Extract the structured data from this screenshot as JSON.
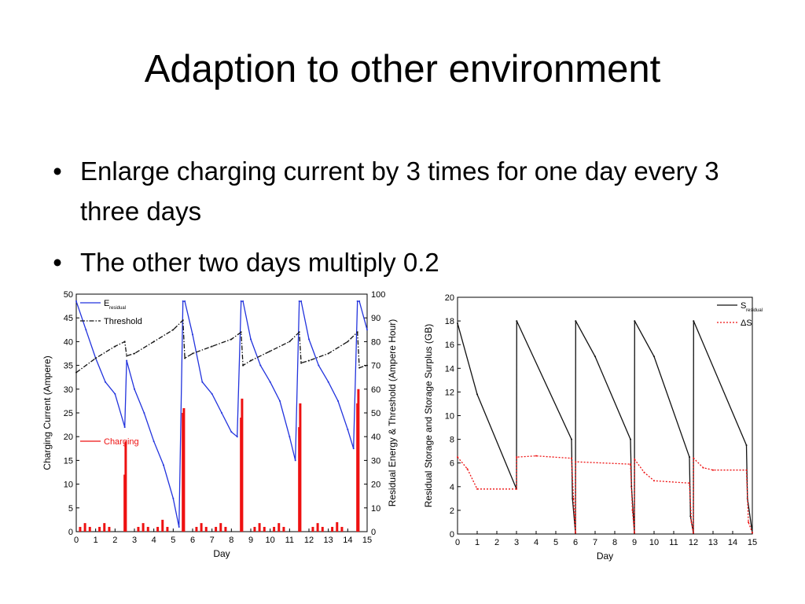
{
  "slide": {
    "title": "Adaption to other environment",
    "bullets": [
      "Enlarge charging current by 3 times for one day every 3 three days",
      "The other two days multiply 0.2"
    ]
  },
  "chart_data": [
    {
      "type": "line",
      "xlabel": "Day",
      "ylabel": "Charging Current (Ampere)",
      "y2label": "Residual Energy & Threshold (Ampere Hour)",
      "xlim": [
        0,
        15
      ],
      "ylim": [
        0,
        50
      ],
      "y2lim": [
        0,
        100
      ],
      "xticks": [
        0,
        1,
        2,
        3,
        4,
        5,
        6,
        7,
        8,
        9,
        10,
        11,
        12,
        13,
        14,
        15
      ],
      "yticks": [
        0,
        5,
        10,
        15,
        20,
        25,
        30,
        35,
        40,
        45,
        50
      ],
      "y2ticks": [
        0,
        10,
        20,
        30,
        40,
        50,
        60,
        70,
        80,
        90,
        100
      ],
      "legend_position": "top-left",
      "series": [
        {
          "name": "E",
          "name_sub": "residual",
          "axis": "right",
          "color": "#2233dd",
          "style": "solid",
          "x": [
            0,
            0.5,
            1,
            1.5,
            2,
            2.5,
            2.6,
            3,
            3.5,
            4,
            4.5,
            5,
            5.3,
            5.5,
            5.6,
            6,
            6.5,
            7,
            7.5,
            8,
            8.3,
            8.5,
            8.6,
            9,
            9.5,
            10,
            10.5,
            11,
            11.3,
            11.5,
            11.6,
            12,
            12.5,
            13,
            13.5,
            14,
            14.3,
            14.5,
            14.6,
            15
          ],
          "y": [
            97,
            85,
            73,
            63,
            58,
            44,
            72,
            60,
            50,
            38,
            28,
            14,
            2,
            97,
            97,
            83,
            63,
            58,
            50,
            42,
            40,
            97,
            97,
            81,
            70,
            63,
            55,
            40,
            30,
            97,
            97,
            81,
            70,
            63,
            55,
            43,
            35,
            97,
            97,
            85
          ]
        },
        {
          "name": "Threshold",
          "axis": "right",
          "color": "#111111",
          "style": "dash-dot",
          "x": [
            0,
            1,
            2,
            2.5,
            2.6,
            3,
            4,
            5,
            5.5,
            5.6,
            6,
            7,
            8,
            8.5,
            8.6,
            9,
            10,
            11,
            11.5,
            11.6,
            12,
            13,
            14,
            14.5,
            14.6,
            15
          ],
          "y": [
            67,
            73,
            78,
            80,
            74,
            75,
            80,
            85,
            89,
            73,
            75,
            78,
            81,
            84,
            70,
            72,
            76,
            80,
            84,
            71,
            72,
            75,
            80,
            84,
            69,
            70
          ]
        },
        {
          "name": "Charging",
          "axis": "left",
          "color": "#ee1111",
          "style": "spikes",
          "x": [
            0.2,
            0.45,
            0.7,
            1.2,
            1.45,
            1.7,
            2.5,
            2.55,
            3.2,
            3.45,
            3.7,
            4.2,
            4.45,
            4.7,
            5.5,
            5.55,
            6.2,
            6.45,
            6.7,
            7.2,
            7.45,
            7.7,
            8.5,
            8.55,
            9.2,
            9.45,
            9.7,
            10.2,
            10.45,
            10.7,
            11.5,
            11.55,
            12.2,
            12.45,
            12.7,
            13.2,
            13.45,
            13.7,
            14.5,
            14.55
          ],
          "y": [
            1,
            1.8,
            1,
            1,
            1.8,
            1,
            12,
            19,
            1,
            1.8,
            1,
            1,
            2.5,
            1,
            25,
            26,
            1,
            1.8,
            1,
            1,
            1.8,
            1,
            24,
            28,
            1,
            1.8,
            1,
            1,
            1.8,
            1,
            22,
            27,
            1,
            1.8,
            1,
            1,
            2,
            1,
            27,
            30
          ]
        }
      ]
    },
    {
      "type": "line",
      "xlabel": "Day",
      "ylabel": "Residual Storage and Storage Surplus (GB)",
      "xlim": [
        0,
        15
      ],
      "ylim": [
        0,
        20
      ],
      "xticks": [
        0,
        1,
        2,
        3,
        4,
        5,
        6,
        7,
        8,
        9,
        10,
        11,
        12,
        13,
        14,
        15
      ],
      "yticks": [
        0,
        2,
        4,
        6,
        8,
        10,
        12,
        14,
        16,
        18,
        20
      ],
      "legend_position": "top-right",
      "series": [
        {
          "name": "S",
          "name_sub": "residual",
          "color": "#111111",
          "style": "solid",
          "x": [
            0,
            1,
            3,
            3.01,
            5.8,
            5.85,
            6,
            6.01,
            7,
            8.8,
            8.85,
            9,
            9.01,
            10,
            11.8,
            11.85,
            12,
            12.01,
            14.7,
            14.75,
            15
          ],
          "y": [
            17.8,
            11.8,
            3.8,
            18,
            8,
            3,
            0.1,
            18,
            15,
            8,
            4,
            0.1,
            18,
            15,
            6.5,
            1.5,
            0.1,
            18,
            7.5,
            3,
            0.1
          ]
        },
        {
          "name": "ΔS",
          "color": "#ee1111",
          "style": "dotted",
          "x": [
            0,
            0.5,
            1,
            3,
            3.01,
            4,
            5.8,
            5.9,
            6,
            6.01,
            8.8,
            8.9,
            9,
            9.01,
            9.5,
            10,
            11.8,
            11.9,
            12,
            12.01,
            12.5,
            13,
            14.7,
            14.8,
            15
          ],
          "y": [
            6.5,
            5.5,
            3.8,
            3.8,
            6.5,
            6.6,
            6.4,
            3,
            0.1,
            6.1,
            5.9,
            2,
            0.1,
            6.3,
            5.2,
            4.5,
            4.3,
            1,
            0.1,
            6.4,
            5.6,
            5.4,
            5.4,
            1,
            0.1
          ]
        }
      ]
    }
  ]
}
